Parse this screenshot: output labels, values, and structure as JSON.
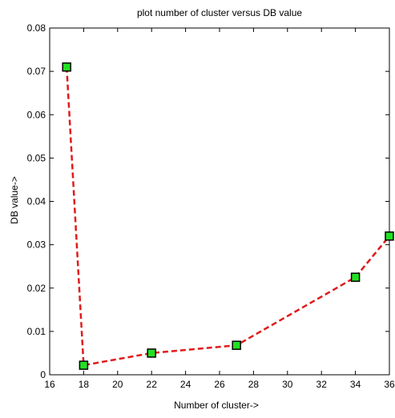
{
  "chart_data": {
    "type": "line",
    "title": "plot number of cluster versus DB value",
    "xlabel": "Number of cluster->",
    "ylabel": "DB value->",
    "xlim": [
      16,
      36
    ],
    "ylim": [
      0,
      0.08
    ],
    "x_ticks": [
      "16",
      "18",
      "20",
      "22",
      "24",
      "26",
      "28",
      "30",
      "32",
      "34",
      "36"
    ],
    "y_ticks": [
      "0",
      "0.01",
      "0.02",
      "0.03",
      "0.04",
      "0.05",
      "0.06",
      "0.07",
      "0.08"
    ],
    "grid": false,
    "series": [
      {
        "x": [
          17,
          18,
          22,
          27,
          34,
          36
        ],
        "y": [
          0.071,
          0.0022,
          0.005,
          0.0068,
          0.0225,
          0.032
        ],
        "line_color": "#e01b1b",
        "line_style": "dashed",
        "marker": "square",
        "marker_face_color": "#22e022",
        "marker_edge_color": "#000000"
      }
    ]
  }
}
